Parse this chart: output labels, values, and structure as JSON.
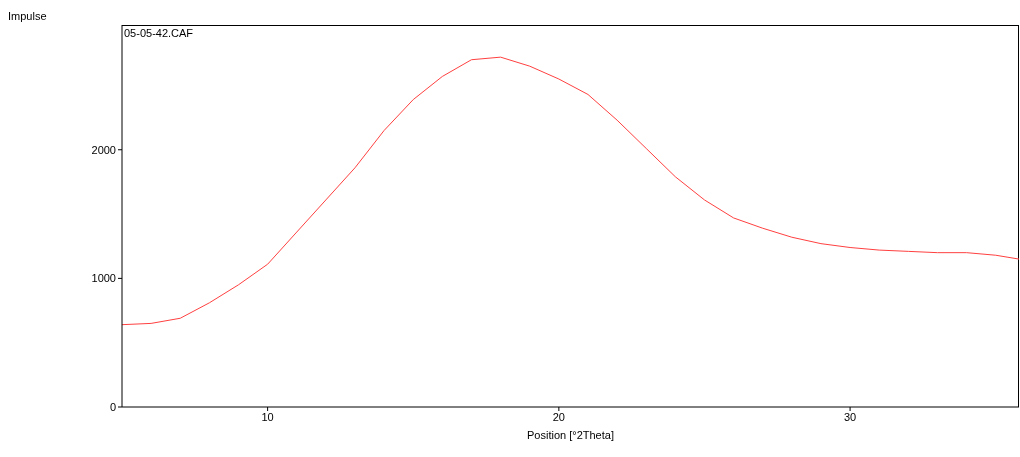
{
  "chart_data": {
    "type": "line",
    "xlabel": "Position [°2Theta]",
    "ylabel": "Impulse",
    "annotations": [
      "05-05-42.CAF"
    ],
    "series": [
      {
        "color": "#ff4040",
        "x": [
          5,
          6,
          7,
          8,
          9,
          10,
          11,
          12,
          13,
          14,
          15,
          16,
          17,
          18,
          19,
          20,
          21,
          22,
          23,
          24,
          25,
          26,
          27,
          28,
          29,
          30,
          31,
          32,
          33,
          34,
          35,
          35.8
        ],
        "values": [
          640,
          650,
          690,
          810,
          950,
          1110,
          1360,
          1610,
          1860,
          2150,
          2390,
          2570,
          2700,
          2720,
          2650,
          2550,
          2430,
          2230,
          2010,
          1790,
          1610,
          1470,
          1390,
          1320,
          1270,
          1240,
          1220,
          1210,
          1200,
          1200,
          1180,
          1150
        ]
      }
    ],
    "xlim": [
      5,
      35.8
    ],
    "xticks": [
      10,
      20,
      30
    ],
    "ylim": [
      0,
      2970
    ],
    "yticks": [
      0,
      1000,
      2000
    ],
    "grid": false,
    "marker": "none",
    "line_style": "solid"
  }
}
